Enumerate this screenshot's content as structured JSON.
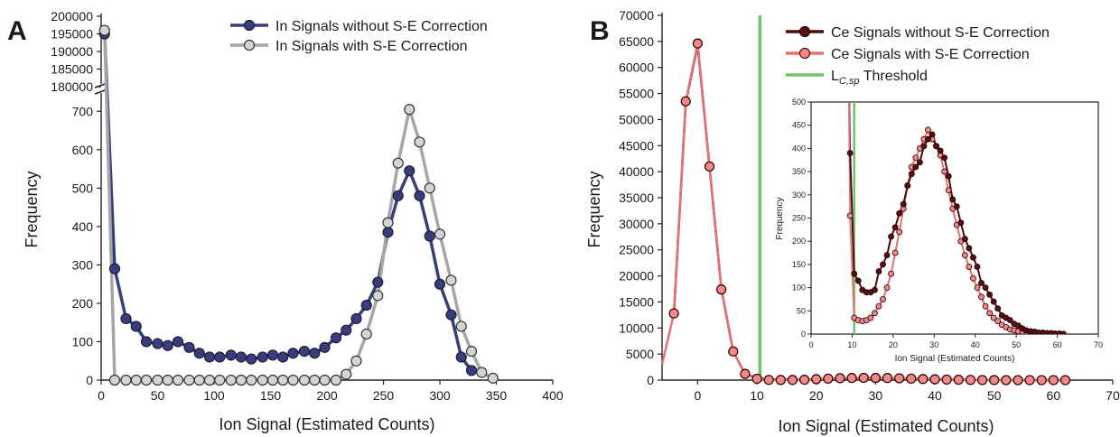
{
  "chart_data": [
    {
      "panel_label": "A",
      "type": "line",
      "xlabel": "Ion Signal (Estimated Counts)",
      "ylabel": "Frequency",
      "xlim": [
        0,
        400
      ],
      "x_ticks": [
        "0",
        "50",
        "100",
        "150",
        "200",
        "250",
        "300",
        "350",
        "400"
      ],
      "y_lower_range": [
        0,
        750
      ],
      "y_lower_ticks": [
        "0",
        "100",
        "200",
        "300",
        "400",
        "500",
        "600",
        "700"
      ],
      "y_upper_range": [
        180000,
        200000
      ],
      "y_upper_ticks": [
        "180000",
        "185000",
        "190000",
        "195000",
        "200000"
      ],
      "axis_break": true,
      "legend_position": "top-right",
      "colors": {
        "without": "#3a3d7c",
        "with": "#a6a6a6",
        "with_marker": "#d4d4d4"
      },
      "series": [
        {
          "name": "In Signals without S-E Correction",
          "x": [
            3,
            12,
            22,
            31,
            40,
            50,
            59,
            68,
            78,
            87,
            96,
            105,
            115,
            124,
            133,
            143,
            152,
            161,
            170,
            180,
            189,
            198,
            208,
            217,
            226,
            235,
            245,
            254,
            263,
            273,
            282,
            291,
            300,
            310,
            319,
            328
          ],
          "y": [
            195000,
            290,
            160,
            140,
            100,
            95,
            90,
            100,
            85,
            70,
            60,
            60,
            65,
            60,
            55,
            60,
            65,
            60,
            70,
            75,
            70,
            85,
            110,
            130,
            160,
            195,
            255,
            385,
            480,
            545,
            480,
            375,
            250,
            170,
            60,
            25
          ]
        },
        {
          "name": "In Signals with S-E Correction",
          "x": [
            3,
            12,
            22,
            31,
            40,
            50,
            59,
            68,
            78,
            87,
            96,
            105,
            115,
            124,
            133,
            143,
            152,
            161,
            170,
            180,
            189,
            198,
            208,
            217,
            226,
            235,
            245,
            254,
            263,
            273,
            282,
            291,
            300,
            310,
            319,
            328,
            337,
            347
          ],
          "y": [
            196000,
            0,
            0,
            0,
            0,
            0,
            0,
            0,
            0,
            0,
            0,
            0,
            0,
            0,
            0,
            0,
            0,
            0,
            0,
            0,
            0,
            0,
            0,
            15,
            50,
            120,
            220,
            410,
            565,
            705,
            620,
            500,
            380,
            260,
            140,
            75,
            20,
            5
          ]
        }
      ]
    },
    {
      "panel_label": "B",
      "type": "line",
      "xlabel": "Ion Signal (Estimated Counts)",
      "ylabel": "Frequency",
      "xlim": [
        -6,
        70
      ],
      "ylim": [
        0,
        70000
      ],
      "x_ticks": [
        "0",
        "10",
        "20",
        "30",
        "40",
        "50",
        "60",
        "70"
      ],
      "y_ticks": [
        "0",
        "5000",
        "10000",
        "15000",
        "20000",
        "25000",
        "30000",
        "35000",
        "40000",
        "45000",
        "50000",
        "55000",
        "60000",
        "65000",
        "70000"
      ],
      "legend_position": "top-right",
      "colors": {
        "without": "#4a0c0c",
        "with": "#e86f6f",
        "with_marker": "#f08a8a",
        "threshold": "#6cc46c"
      },
      "threshold_x": 10.5,
      "series": [
        {
          "name": "Ce Signals without S-E Correction",
          "x": [
            -4,
            -2,
            0,
            2,
            4,
            6,
            8,
            10,
            12,
            14,
            16,
            18,
            20,
            22,
            24,
            26,
            28,
            30,
            32,
            34,
            36,
            38,
            40,
            42,
            44,
            46,
            48,
            50,
            52,
            54,
            56,
            58,
            60,
            62
          ],
          "y": [
            12700,
            53400,
            64300,
            41000,
            17400,
            5500,
            1200,
            380,
            130,
            100,
            90,
            95,
            150,
            260,
            330,
            380,
            410,
            420,
            400,
            370,
            300,
            220,
            170,
            120,
            90,
            60,
            30,
            15,
            10,
            5,
            3,
            2,
            1,
            0
          ]
        },
        {
          "name": "Ce Signals with S-E Correction",
          "x": [
            -6,
            -4,
            -2,
            0,
            2,
            4,
            6,
            8,
            10,
            12,
            14,
            16,
            18,
            20,
            22,
            24,
            26,
            28,
            30,
            32,
            34,
            36,
            38,
            40,
            42,
            44,
            46,
            48,
            50,
            52,
            54,
            56,
            58,
            60,
            62
          ],
          "y": [
            3000,
            12800,
            53500,
            64600,
            41000,
            17400,
            5500,
            1200,
            260,
            40,
            30,
            35,
            80,
            180,
            280,
            360,
            400,
            430,
            420,
            400,
            350,
            280,
            210,
            160,
            110,
            80,
            45,
            20,
            12,
            5,
            3,
            2,
            1,
            0,
            0
          ]
        }
      ],
      "threshold_label": {
        "main": "L",
        "sub": "C,sp",
        "rest": " Threshold"
      },
      "inset": {
        "xlabel": "Ion Signal (Estimated Counts)",
        "ylabel": "Frequency",
        "xlim": [
          0,
          70
        ],
        "ylim": [
          0,
          500
        ],
        "x_ticks": [
          "0",
          "10",
          "20",
          "30",
          "40",
          "50",
          "60",
          "70"
        ],
        "y_ticks": [
          "0",
          "50",
          "100",
          "150",
          "200",
          "250",
          "300",
          "350",
          "400",
          "450",
          "500"
        ],
        "series": [
          {
            "name": "Ce Signals without S-E Correction",
            "x": [
              9.5,
              10.5,
              11.5,
              12.5,
              13.5,
              14.5,
              15.5,
              16.5,
              17.5,
              18.5,
              19.5,
              20.5,
              21.5,
              22.5,
              23.5,
              24.5,
              25.5,
              26.5,
              27.5,
              28.5,
              29.5,
              30.5,
              31.5,
              32.5,
              33.5,
              34.5,
              35.5,
              36.5,
              37.5,
              38.5,
              39.5,
              40.5,
              41.5,
              42.5,
              43.5,
              44.5,
              45.5,
              46.5,
              47.5,
              48.5,
              49.5,
              50.5,
              51.5,
              52.5,
              53.5,
              54.5,
              55.5,
              56.5,
              57.5,
              58.5,
              59.5,
              60.5,
              61.5
            ],
            "y": [
              390,
              130,
              115,
              95,
              90,
              90,
              95,
              135,
              150,
              170,
              210,
              230,
              260,
              280,
              320,
              345,
              360,
              370,
              405,
              420,
              430,
              405,
              395,
              380,
              340,
              290,
              275,
              240,
              205,
              185,
              165,
              145,
              110,
              100,
              85,
              70,
              55,
              40,
              35,
              30,
              22,
              18,
              12,
              8,
              6,
              5,
              3,
              3,
              2,
              2,
              1,
              1,
              0
            ]
          },
          {
            "name": "Ce Signals with S-E Correction",
            "x": [
              9.5,
              10.5,
              11.5,
              12.5,
              13.5,
              14.5,
              15.5,
              16.5,
              17.5,
              18.5,
              19.5,
              20.5,
              21.5,
              22.5,
              23.5,
              24.5,
              25.5,
              26.5,
              27.5,
              28.5,
              29.5,
              30.5,
              31.5,
              32.5,
              33.5,
              34.5,
              35.5,
              36.5,
              37.5,
              38.5,
              39.5,
              40.5,
              41.5,
              42.5,
              43.5,
              44.5,
              45.5,
              46.5,
              47.5,
              48.5,
              49.5,
              50.5,
              51.5,
              52.5,
              53.5,
              54.5,
              55.5,
              56.5,
              57.5,
              58.5,
              59.5,
              60.5,
              61.5
            ],
            "y": [
              255,
              35,
              30,
              28,
              30,
              35,
              45,
              60,
              75,
              100,
              130,
              175,
              220,
              270,
              320,
              360,
              380,
              400,
              420,
              440,
              420,
              405,
              385,
              350,
              310,
              270,
              235,
              200,
              170,
              145,
              120,
              100,
              80,
              60,
              45,
              35,
              28,
              20,
              15,
              10,
              8,
              6,
              5,
              4,
              3,
              2,
              2,
              1,
              1,
              1,
              0,
              0,
              0
            ]
          }
        ]
      }
    }
  ]
}
